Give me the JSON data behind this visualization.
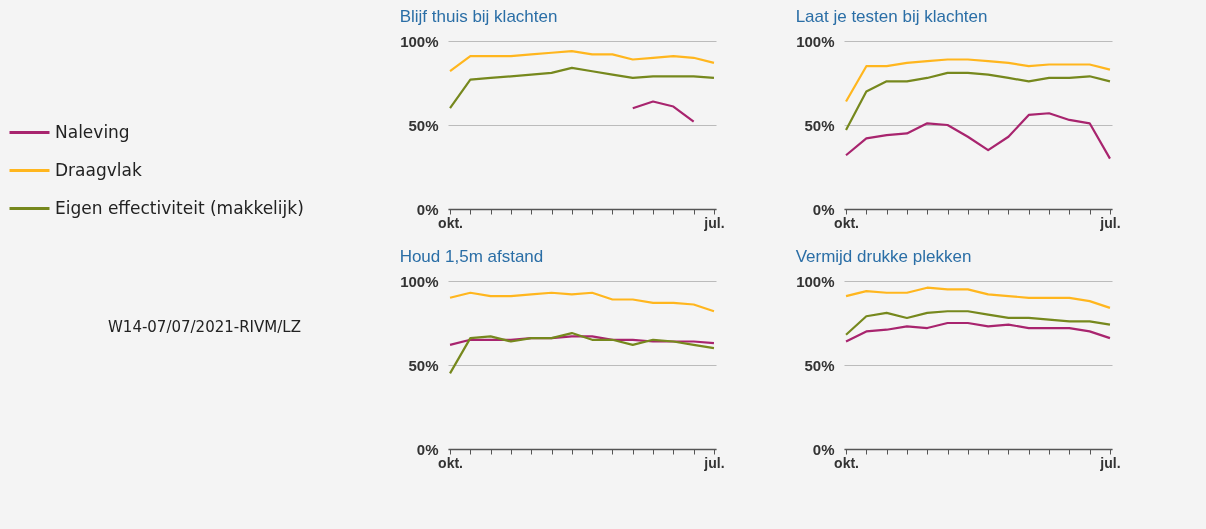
{
  "chart_data": [
    {
      "type": "line",
      "title": "Blijf thuis bij klachten",
      "categories": [
        "okt.",
        null,
        null,
        null,
        null,
        null,
        null,
        null,
        null,
        null,
        null,
        null,
        null,
        "jul."
      ],
      "ylim": [
        0,
        100
      ],
      "yticks": [
        {
          "value": 0,
          "label": "0%"
        },
        {
          "value": 50,
          "label": "50%"
        },
        {
          "value": 100,
          "label": "100%"
        }
      ],
      "grid": "y",
      "legend": "left",
      "annotations": [
        "W14-07/07/2021-RIVM/LZ"
      ],
      "series": [
        {
          "name": "Naleving",
          "color": "#a8246e",
          "values": [
            null,
            null,
            null,
            null,
            null,
            null,
            null,
            null,
            null,
            60,
            64,
            61,
            52,
            null
          ]
        },
        {
          "name": "Draagvlak",
          "color": "#ffb61e",
          "values": [
            82,
            91,
            91,
            91,
            92,
            93,
            94,
            92,
            92,
            89,
            90,
            91,
            90,
            87
          ]
        },
        {
          "name": "Eigen effectiviteit (makkelijk)",
          "color": "#76881d",
          "values": [
            60,
            77,
            78,
            79,
            80,
            81,
            84,
            82,
            80,
            78,
            79,
            79,
            79,
            78
          ]
        }
      ]
    },
    {
      "type": "line",
      "title": "Laat je testen bij klachten",
      "categories": [
        "okt.",
        null,
        null,
        null,
        null,
        null,
        null,
        null,
        null,
        null,
        null,
        null,
        null,
        "jul."
      ],
      "ylim": [
        0,
        100
      ],
      "yticks": [
        {
          "value": 0,
          "label": "0%"
        },
        {
          "value": 50,
          "label": "50%"
        },
        {
          "value": 100,
          "label": "100%"
        }
      ],
      "grid": "y",
      "series": [
        {
          "name": "Naleving",
          "color": "#a8246e",
          "values": [
            32,
            42,
            44,
            45,
            51,
            50,
            43,
            35,
            43,
            56,
            57,
            53,
            51,
            30
          ]
        },
        {
          "name": "Draagvlak",
          "color": "#ffb61e",
          "values": [
            64,
            85,
            85,
            87,
            88,
            89,
            89,
            88,
            87,
            85,
            86,
            86,
            86,
            83
          ]
        },
        {
          "name": "Eigen effectiviteit (makkelijk)",
          "color": "#76881d",
          "values": [
            47,
            70,
            76,
            76,
            78,
            81,
            81,
            80,
            78,
            76,
            78,
            78,
            79,
            76
          ]
        }
      ]
    },
    {
      "type": "line",
      "title": "Houd 1,5m afstand",
      "categories": [
        "okt.",
        null,
        null,
        null,
        null,
        null,
        null,
        null,
        null,
        null,
        null,
        null,
        null,
        "jul."
      ],
      "ylim": [
        0,
        100
      ],
      "yticks": [
        {
          "value": 0,
          "label": "0%"
        },
        {
          "value": 50,
          "label": "50%"
        },
        {
          "value": 100,
          "label": "100%"
        }
      ],
      "grid": "y",
      "series": [
        {
          "name": "Naleving",
          "color": "#a8246e",
          "values": [
            62,
            65,
            65,
            65,
            66,
            66,
            67,
            67,
            65,
            65,
            64,
            64,
            64,
            63
          ]
        },
        {
          "name": "Draagvlak",
          "color": "#ffb61e",
          "values": [
            90,
            93,
            91,
            91,
            92,
            93,
            92,
            93,
            89,
            89,
            87,
            87,
            86,
            82
          ]
        },
        {
          "name": "Eigen effectiviteit (makkelijk)",
          "color": "#76881d",
          "values": [
            45,
            66,
            67,
            64,
            66,
            66,
            69,
            65,
            65,
            62,
            65,
            64,
            62,
            60
          ]
        }
      ]
    },
    {
      "type": "line",
      "title": "Vermijd drukke plekken",
      "categories": [
        "okt.",
        null,
        null,
        null,
        null,
        null,
        null,
        null,
        null,
        null,
        null,
        null,
        null,
        "jul."
      ],
      "ylim": [
        0,
        100
      ],
      "yticks": [
        {
          "value": 0,
          "label": "0%"
        },
        {
          "value": 50,
          "label": "50%"
        },
        {
          "value": 100,
          "label": "100%"
        }
      ],
      "grid": "y",
      "series": [
        {
          "name": "Naleving",
          "color": "#a8246e",
          "values": [
            64,
            70,
            71,
            73,
            72,
            75,
            75,
            73,
            74,
            72,
            72,
            72,
            70,
            66
          ]
        },
        {
          "name": "Draagvlak",
          "color": "#ffb61e",
          "values": [
            91,
            94,
            93,
            93,
            96,
            95,
            95,
            92,
            91,
            90,
            90,
            90,
            88,
            84
          ]
        },
        {
          "name": "Eigen effectiviteit (makkelijk)",
          "color": "#76881d",
          "values": [
            68,
            79,
            81,
            78,
            81,
            82,
            82,
            80,
            78,
            78,
            77,
            76,
            76,
            74
          ]
        }
      ]
    }
  ]
}
